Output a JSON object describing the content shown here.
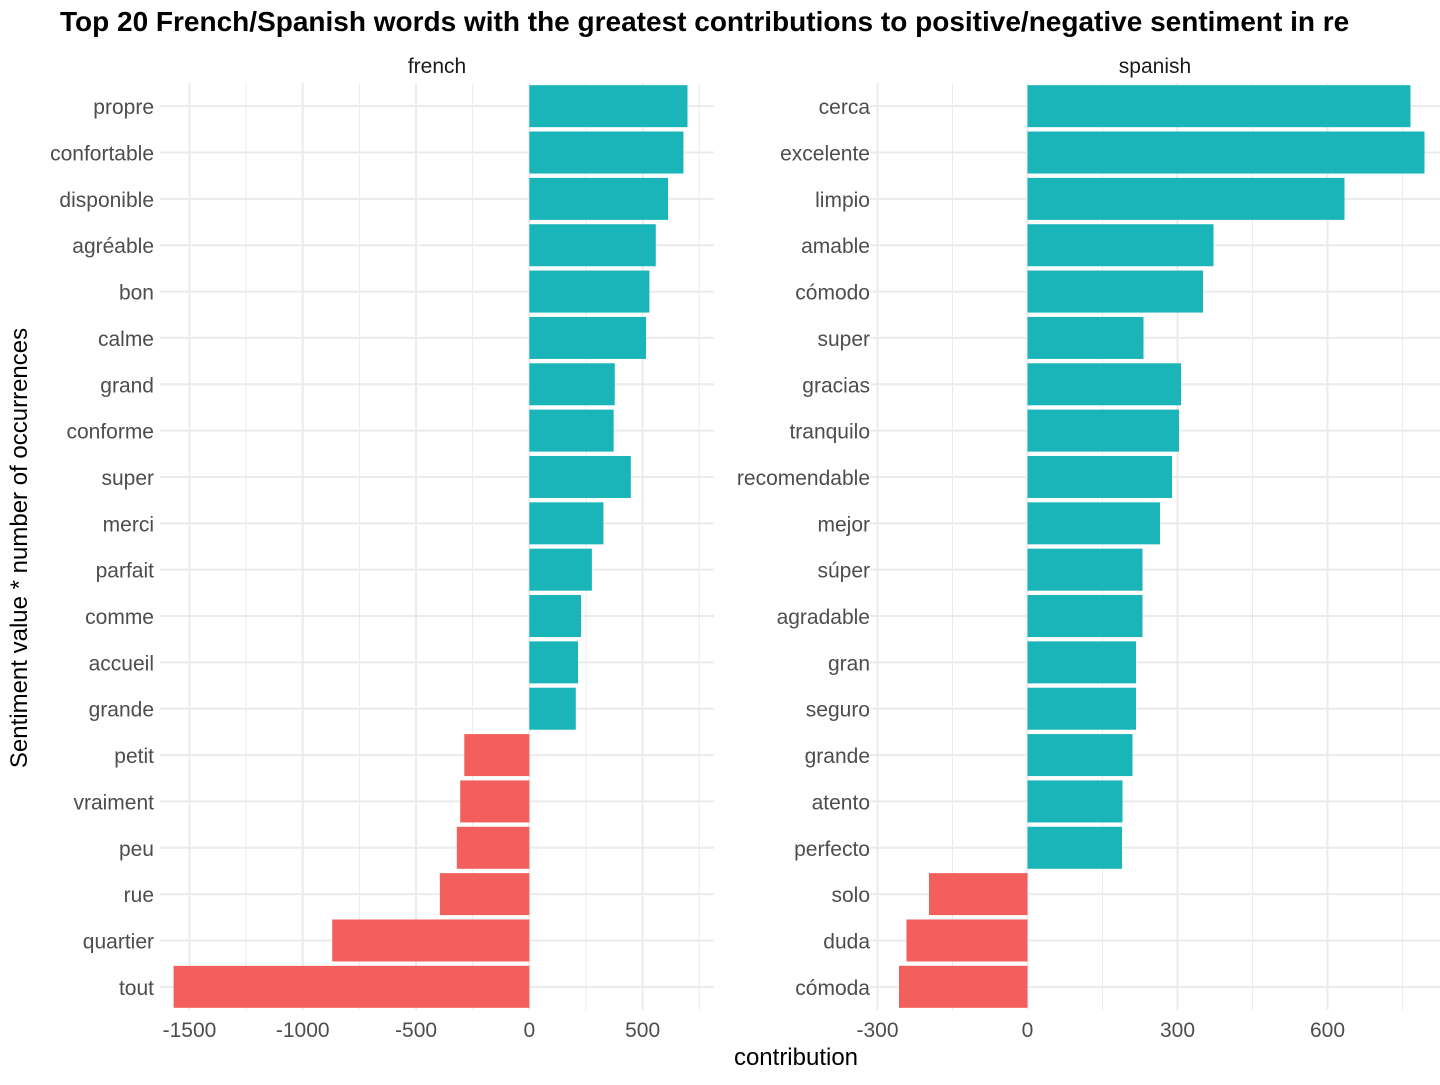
{
  "chart_data": {
    "type": "bar",
    "orientation": "horizontal",
    "title": "Top 20 French/Spanish words with the greatest contributions to positive/negative sentiment in re",
    "xlabel": "contribution",
    "ylabel": "Sentiment value * number of occurrences",
    "grid": true,
    "legend": "none",
    "colors": {
      "positive": "#19b5b8",
      "negative": "#f35f5c"
    },
    "facets": [
      {
        "name": "french",
        "xlim": [
          -1630,
          815
        ],
        "xticks": [
          -1500,
          -1000,
          -500,
          0,
          500
        ],
        "xtick_labels": [
          "-1500",
          "-1000",
          "-500",
          "0",
          "500"
        ],
        "categories": [
          "propre",
          "confortable",
          "disponible",
          "agréable",
          "bon",
          "calme",
          "grand",
          "conforme",
          "super",
          "merci",
          "parfait",
          "comme",
          "accueil",
          "grande",
          "petit",
          "vraiment",
          "peu",
          "rue",
          "quartier",
          "tout"
        ],
        "values": [
          698,
          680,
          612,
          558,
          530,
          515,
          377,
          372,
          448,
          327,
          276,
          228,
          215,
          205,
          -287,
          -305,
          -320,
          -395,
          -870,
          -1570
        ]
      },
      {
        "name": "spanish",
        "xlim": [
          -315,
          825
        ],
        "xticks": [
          -300,
          0,
          300,
          600
        ],
        "xtick_labels": [
          "-300",
          "0",
          "300",
          "600"
        ],
        "categories": [
          "cerca",
          "excelente",
          "limpio",
          "amable",
          "cómodo",
          "super",
          "gracias",
          "tranquilo",
          "recomendable",
          "mejor",
          "súper",
          "agradable",
          "gran",
          "seguro",
          "grande",
          "atento",
          "perfecto",
          "solo",
          "duda",
          "cómoda"
        ],
        "values": [
          766,
          794,
          634,
          372,
          351,
          232,
          307,
          303,
          289,
          265,
          230,
          230,
          217,
          217,
          210,
          190,
          189,
          -197,
          -242,
          -257
        ]
      }
    ]
  }
}
